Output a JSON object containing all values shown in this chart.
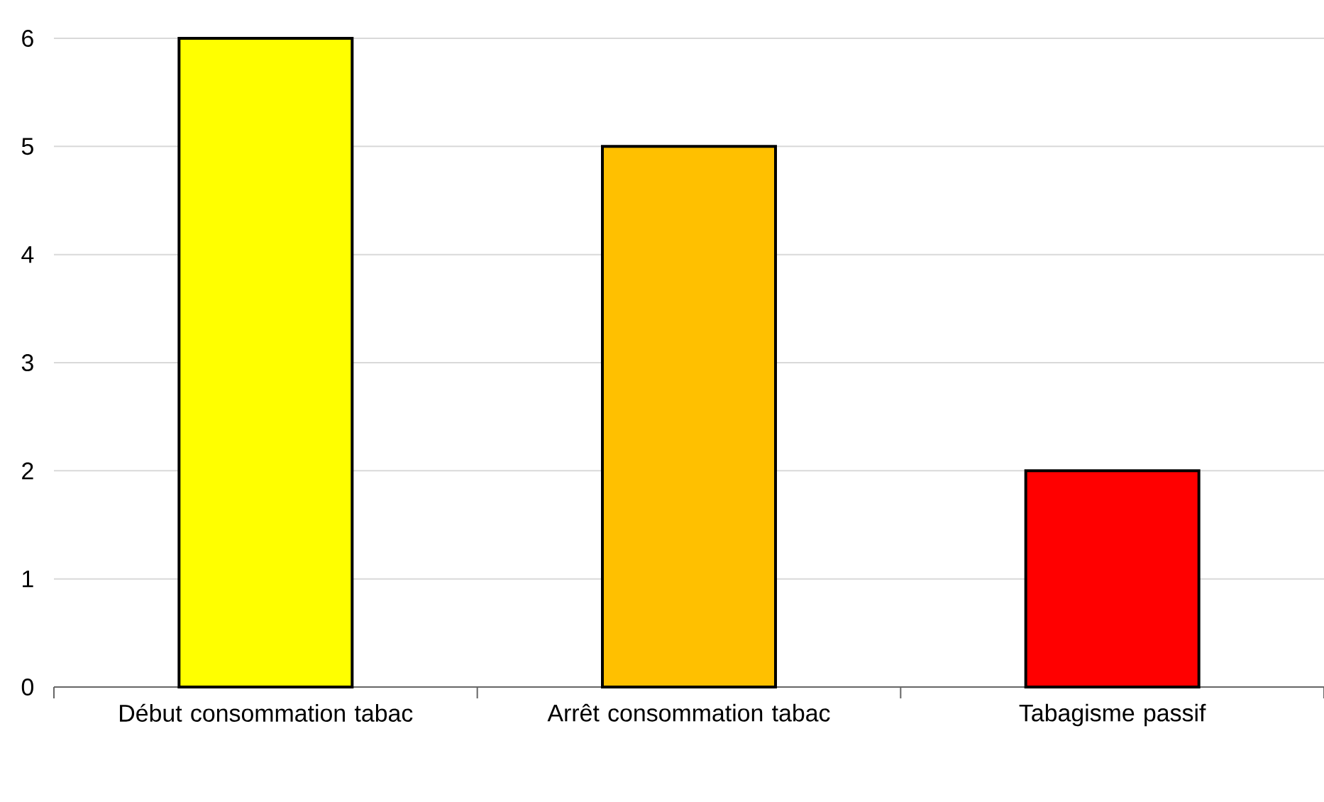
{
  "chart_data": {
    "type": "bar",
    "categories": [
      "Début consommation tabac",
      "Arrêt consommation tabac",
      "Tabagisme passif"
    ],
    "values": [
      6,
      5,
      2
    ],
    "colors": [
      "#ffff00",
      "#ffc000",
      "#ff0000"
    ],
    "ylim": [
      0,
      6
    ],
    "yticks": [
      0,
      1,
      2,
      3,
      4,
      5,
      6
    ],
    "grid": "y"
  }
}
